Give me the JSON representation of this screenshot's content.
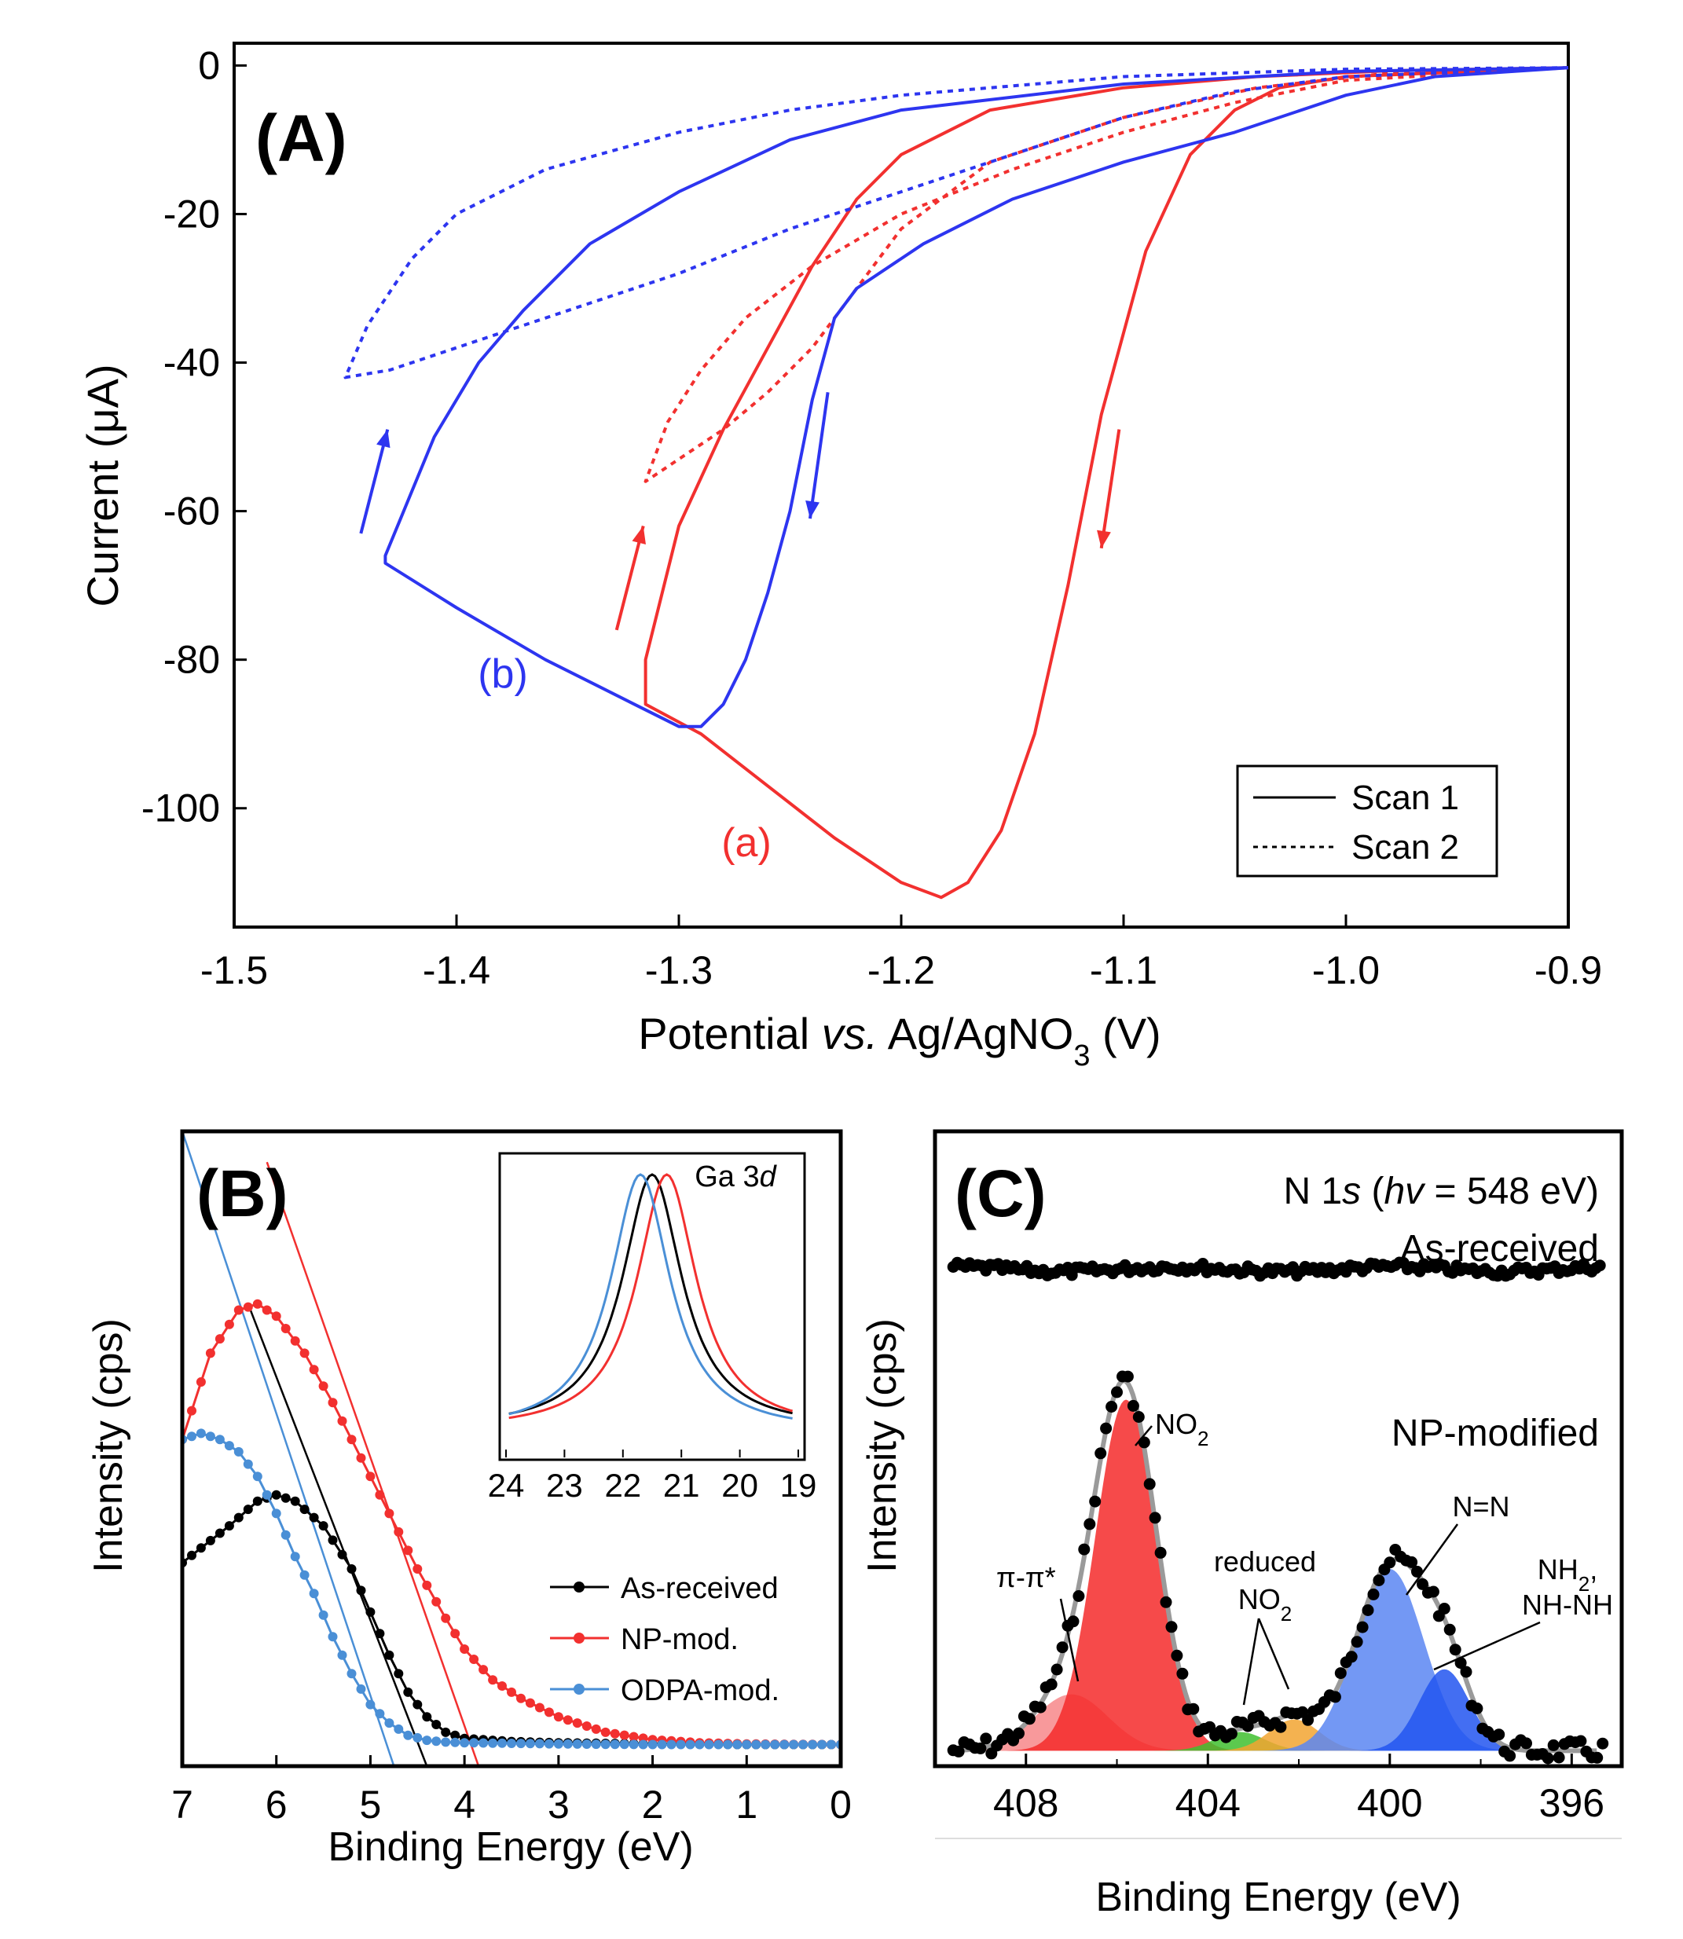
{
  "panels": {
    "A": {
      "label": "(A)",
      "ylabel": "Current (μA)",
      "xlabel_pre": "Potential ",
      "xlabel_italic": "vs.",
      "xlabel_mid": " Ag/AgNO",
      "xlabel_sub": "3",
      "xlabel_post": " (V)",
      "curve_a_label": "(a)",
      "curve_b_label": "(b)",
      "legend": [
        "Scan 1",
        "Scan 2"
      ]
    },
    "B": {
      "label": "(B)",
      "ylabel": "Intensity (cps)",
      "xlabel": "Binding Energy (eV)",
      "legend": [
        "As-received",
        "NP-mod.",
        "ODPA-mod."
      ],
      "inset_label_pre": "Ga 3",
      "inset_label_italic": "d"
    },
    "C": {
      "label": "(C)",
      "ylabel": "Intensity (cps)",
      "xlabel": "Binding Energy (eV)",
      "title_pre": "N 1",
      "title_italic_s": "s",
      "title_open": " (",
      "title_italic_hv": "hv",
      "title_post": " = 548 eV)",
      "as_received": "As-received",
      "np_modified": "NP-modified",
      "ann_no2": "NO",
      "ann_no2_sub": "2",
      "ann_pipi": "π-π*",
      "ann_reduced": "reduced",
      "ann_reduced_no2": "NO",
      "ann_reduced_no2_sub": "2",
      "ann_nn": "N=N",
      "ann_nh2": "NH",
      "ann_nh2_sub": "2",
      "ann_nh2_comma": ",",
      "ann_nhnh": "NH-NH"
    }
  },
  "colors": {
    "red": "#f2302f",
    "blue": "#2d35f0",
    "black": "#000000",
    "lightblue": "#4a8fd6",
    "fill_red": "#f52a2a",
    "fill_pink": "#f7878a",
    "fill_green": "#3fbf2f",
    "fill_orange": "#f2a531",
    "fill_blue": "#5a86f2",
    "fill_darkblue": "#2255f0",
    "envelope": "#9a9a9a"
  },
  "chart_data": [
    {
      "panel": "A",
      "type": "line",
      "title": "",
      "xlabel": "Potential vs. Ag/AgNO3 (V)",
      "ylabel": "Current (μA)",
      "xlim": [
        -1.5,
        -0.9
      ],
      "ylim": [
        -116,
        3
      ],
      "xticks": [
        "-1.5",
        "-1.4",
        "-1.3",
        "-1.2",
        "-1.1",
        "-1.0",
        "-0.9"
      ],
      "yticks": [
        "0",
        "-20",
        "-40",
        "-60",
        "-80",
        "-100"
      ],
      "series": [
        {
          "name": "Scan 1",
          "curve": "(a)",
          "color": "red",
          "dash": "solid",
          "x": [
            -0.9,
            -1.0,
            -1.03,
            -1.05,
            -1.07,
            -1.09,
            -1.11,
            -1.125,
            -1.14,
            -1.155,
            -1.17,
            -1.182,
            -1.2,
            -1.23,
            -1.26,
            -1.29,
            -1.315,
            -1.315,
            -1.3,
            -1.28,
            -1.26,
            -1.24,
            -1.22,
            -1.2,
            -1.16,
            -1.1,
            -1.04,
            -0.98,
            -0.9
          ],
          "y": [
            -0.3,
            -1.5,
            -3,
            -6,
            -12,
            -25,
            -47,
            -70,
            -90,
            -103,
            -110,
            -112,
            -110,
            -104,
            -97,
            -90,
            -86,
            -80,
            -62,
            -49,
            -38,
            -27,
            -18,
            -12,
            -6,
            -3,
            -1.5,
            -0.7,
            -0.3
          ]
        },
        {
          "name": "Scan 2",
          "curve": "(a)",
          "color": "red",
          "dash": "dotted",
          "x": [
            -0.9,
            -1.0,
            -1.05,
            -1.1,
            -1.15,
            -1.2,
            -1.24,
            -1.27,
            -1.29,
            -1.305,
            -1.315,
            -1.3,
            -1.28,
            -1.26,
            -1.24,
            -1.22,
            -1.2,
            -1.16,
            -1.1,
            -1.04,
            -0.98,
            -0.9
          ],
          "y": [
            -0.3,
            -2,
            -5,
            -9,
            -14,
            -20,
            -27,
            -34,
            -41,
            -48,
            -56,
            -53,
            -49,
            -44,
            -38,
            -30,
            -22,
            -13,
            -7,
            -3,
            -1,
            -0.3
          ]
        },
        {
          "name": "Scan 1",
          "curve": "(b)",
          "color": "blue",
          "dash": "solid",
          "x": [
            -0.9,
            -0.96,
            -1.0,
            -1.05,
            -1.1,
            -1.15,
            -1.19,
            -1.22,
            -1.23,
            -1.24,
            -1.25,
            -1.26,
            -1.27,
            -1.28,
            -1.29,
            -1.3,
            -1.32,
            -1.36,
            -1.4,
            -1.432,
            -1.432,
            -1.41,
            -1.39,
            -1.37,
            -1.34,
            -1.3,
            -1.25,
            -1.2,
            -1.1,
            -1.0,
            -0.9
          ],
          "y": [
            -0.3,
            -1.5,
            -4,
            -9,
            -13,
            -18,
            -24,
            -30,
            -34,
            -45,
            -60,
            -71,
            -80,
            -86,
            -89,
            -89,
            -86,
            -80,
            -73,
            -67,
            -66,
            -50,
            -40,
            -33,
            -24,
            -17,
            -10,
            -6,
            -2.5,
            -0.8,
            -0.3
          ]
        },
        {
          "name": "Scan 2",
          "curve": "(b)",
          "color": "blue",
          "dash": "dotted",
          "x": [
            -0.9,
            -1.0,
            -1.05,
            -1.1,
            -1.15,
            -1.2,
            -1.25,
            -1.3,
            -1.35,
            -1.4,
            -1.43,
            -1.45,
            -1.44,
            -1.42,
            -1.4,
            -1.36,
            -1.3,
            -1.25,
            -1.2,
            -1.1,
            -1.0,
            -0.9
          ],
          "y": [
            -0.3,
            -1.5,
            -3.5,
            -7,
            -12,
            -17,
            -22,
            -28,
            -33,
            -38,
            -41,
            -42,
            -35,
            -26,
            -20,
            -14,
            -9,
            -6,
            -4,
            -1.5,
            -0.5,
            -0.3
          ]
        }
      ],
      "annotations": [
        "(a)",
        "(b)"
      ],
      "legend": {
        "entries": [
          "Scan 1",
          "Scan 2"
        ],
        "position": "bottom-right"
      }
    },
    {
      "panel": "B",
      "type": "line",
      "xlabel": "Binding Energy (eV)",
      "ylabel": "Intensity (cps)",
      "xlim": [
        7,
        0
      ],
      "ylim": [
        -0.03,
        1.0
      ],
      "xticks": [
        "7",
        "6",
        "5",
        "4",
        "3",
        "2",
        "1",
        "0"
      ],
      "series": [
        {
          "name": "As-received",
          "color": "black",
          "x": [
            7,
            6.5,
            6.2,
            6.0,
            5.8,
            5.5,
            5.2,
            5.0,
            4.8,
            4.6,
            4.4,
            4.2,
            4.0,
            3.5,
            3.0,
            2.0,
            1.0,
            0
          ],
          "y": [
            0.3,
            0.36,
            0.4,
            0.41,
            0.4,
            0.36,
            0.29,
            0.22,
            0.15,
            0.09,
            0.05,
            0.025,
            0.015,
            0.01,
            0.008,
            0.006,
            0.005,
            0.005
          ]
        },
        {
          "name": "NP-mod.",
          "color": "red",
          "x": [
            7,
            6.7,
            6.4,
            6.2,
            6.0,
            5.7,
            5.4,
            5.1,
            4.8,
            4.5,
            4.2,
            4.0,
            3.7,
            3.4,
            3.0,
            2.5,
            2.0,
            1.5,
            1.0,
            0
          ],
          "y": [
            0.5,
            0.64,
            0.71,
            0.72,
            0.7,
            0.64,
            0.56,
            0.47,
            0.38,
            0.29,
            0.21,
            0.16,
            0.11,
            0.08,
            0.05,
            0.025,
            0.013,
            0.008,
            0.006,
            0.005
          ]
        },
        {
          "name": "ODPA-mod.",
          "color": "lightblue",
          "x": [
            7,
            6.8,
            6.6,
            6.4,
            6.2,
            6.0,
            5.8,
            5.6,
            5.4,
            5.2,
            5.0,
            4.8,
            4.6,
            4.4,
            4.2,
            4.0,
            3.0,
            2.0,
            1.0,
            0
          ],
          "y": [
            0.5,
            0.51,
            0.5,
            0.48,
            0.44,
            0.38,
            0.31,
            0.25,
            0.18,
            0.12,
            0.07,
            0.04,
            0.02,
            0.012,
            0.009,
            0.008,
            0.006,
            0.005,
            0.005,
            0.005
          ]
        }
      ],
      "fit_lines": [
        {
          "color": "black",
          "x": [
            6.3,
            4.4
          ],
          "y": [
            0.72,
            -0.03
          ]
        },
        {
          "color": "red",
          "x": [
            6.1,
            3.85
          ],
          "y": [
            0.95,
            -0.03
          ]
        },
        {
          "color": "lightblue",
          "x": [
            7.0,
            4.75
          ],
          "y": [
            1.0,
            -0.03
          ]
        }
      ],
      "legend": {
        "entries": [
          "As-received",
          "NP-mod.",
          "ODPA-mod."
        ],
        "position": "bottom-right"
      },
      "inset": {
        "label": "Ga 3d",
        "xlim": [
          24,
          19
        ],
        "xticks": [
          "24",
          "23",
          "22",
          "21",
          "20",
          "19"
        ],
        "series": [
          {
            "name": "As-received",
            "color": "black",
            "center": 21.5
          },
          {
            "name": "NP-mod.",
            "color": "red",
            "center": 21.25
          },
          {
            "name": "ODPA-mod.",
            "color": "lightblue",
            "center": 21.7
          }
        ]
      }
    },
    {
      "panel": "C",
      "type": "scatter",
      "xlabel": "Binding Energy (eV)",
      "ylabel": "Intensity (cps)",
      "xlim": [
        410,
        394.9
      ],
      "xticks": [
        "408",
        "404",
        "400",
        "396"
      ],
      "series": [
        {
          "name": "As-received",
          "level": 0.78
        },
        {
          "name": "NP-modified",
          "peaks": [
            {
              "label": "π-π*",
              "center": 407.0,
              "height": 0.09,
              "color": "fill_pink"
            },
            {
              "label": "NO2",
              "center": 405.8,
              "height": 0.56,
              "color": "fill_red"
            },
            {
              "label": "reduced NO2",
              "center": 403.3,
              "height": 0.03,
              "color": "fill_green"
            },
            {
              "label": "reduced NO2",
              "center": 402.1,
              "height": 0.05,
              "color": "fill_orange"
            },
            {
              "label": "N=N",
              "center": 400.0,
              "height": 0.29,
              "color": "fill_blue"
            },
            {
              "label": "NH2, NH-NH",
              "center": 398.8,
              "height": 0.13,
              "color": "fill_darkblue"
            }
          ]
        }
      ]
    }
  ]
}
